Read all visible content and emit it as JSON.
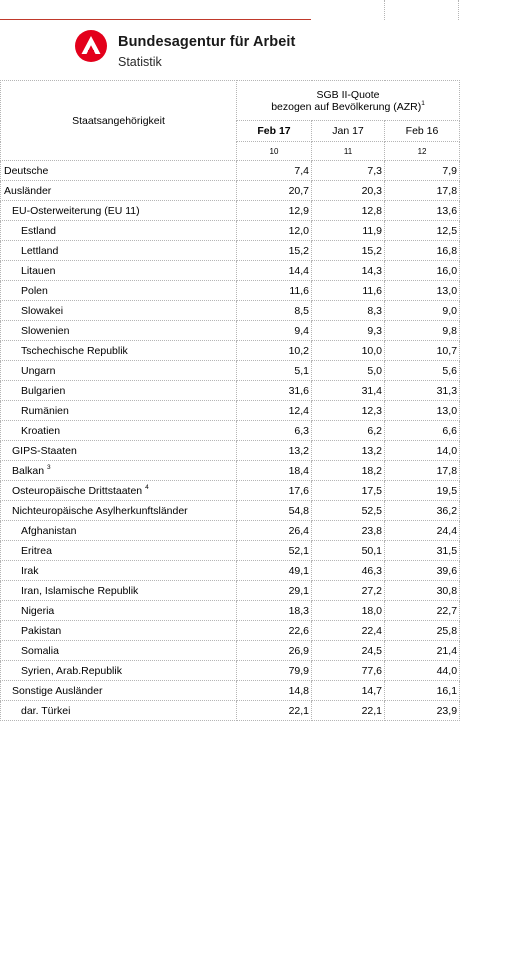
{
  "header": {
    "org_name": "Bundesagentur für Arbeit",
    "org_sub": "Statistik",
    "logo_icon": "ba-logo-icon",
    "accent_color": "#e3001b"
  },
  "table": {
    "row_header": "Staatsangehörigkeit",
    "group_title_line1": "SGB II-Quote",
    "group_title_line2": "bezogen auf Bevölkerung (AZR)",
    "group_title_sup": "1",
    "columns": [
      "Feb 17",
      "Jan 17",
      "Feb 16"
    ],
    "column_numbers": [
      "10",
      "11",
      "12"
    ],
    "rows": [
      {
        "label": "Deutsche",
        "sup": "",
        "level": 0,
        "values": [
          "7,4",
          "7,3",
          "7,9"
        ]
      },
      {
        "label": "Ausländer",
        "sup": "",
        "level": 0,
        "values": [
          "20,7",
          "20,3",
          "17,8"
        ]
      },
      {
        "label": "EU-Osterweiterung (EU 11)",
        "sup": "",
        "level": 1,
        "values": [
          "12,9",
          "12,8",
          "13,6"
        ]
      },
      {
        "label": "Estland",
        "sup": "",
        "level": 2,
        "values": [
          "12,0",
          "11,9",
          "12,5"
        ]
      },
      {
        "label": "Lettland",
        "sup": "",
        "level": 2,
        "values": [
          "15,2",
          "15,2",
          "16,8"
        ]
      },
      {
        "label": "Litauen",
        "sup": "",
        "level": 2,
        "values": [
          "14,4",
          "14,3",
          "16,0"
        ]
      },
      {
        "label": "Polen",
        "sup": "",
        "level": 2,
        "values": [
          "11,6",
          "11,6",
          "13,0"
        ]
      },
      {
        "label": "Slowakei",
        "sup": "",
        "level": 2,
        "values": [
          "8,5",
          "8,3",
          "9,0"
        ]
      },
      {
        "label": "Slowenien",
        "sup": "",
        "level": 2,
        "values": [
          "9,4",
          "9,3",
          "9,8"
        ]
      },
      {
        "label": "Tschechische Republik",
        "sup": "",
        "level": 2,
        "values": [
          "10,2",
          "10,0",
          "10,7"
        ]
      },
      {
        "label": "Ungarn",
        "sup": "",
        "level": 2,
        "values": [
          "5,1",
          "5,0",
          "5,6"
        ]
      },
      {
        "label": "Bulgarien",
        "sup": "",
        "level": 2,
        "values": [
          "31,6",
          "31,4",
          "31,3"
        ]
      },
      {
        "label": "Rumänien",
        "sup": "",
        "level": 2,
        "values": [
          "12,4",
          "12,3",
          "13,0"
        ]
      },
      {
        "label": "Kroatien",
        "sup": "",
        "level": 2,
        "values": [
          "6,3",
          "6,2",
          "6,6"
        ]
      },
      {
        "label": "GIPS-Staaten",
        "sup": "",
        "level": 1,
        "values": [
          "13,2",
          "13,2",
          "14,0"
        ]
      },
      {
        "label": "Balkan",
        "sup": "3",
        "level": 1,
        "values": [
          "18,4",
          "18,2",
          "17,8"
        ]
      },
      {
        "label": "Osteuropäische Drittstaaten",
        "sup": "4",
        "level": 1,
        "values": [
          "17,6",
          "17,5",
          "19,5"
        ]
      },
      {
        "label": "Nichteuropäische Asylherkunftsländer",
        "sup": "",
        "level": 1,
        "values": [
          "54,8",
          "52,5",
          "36,2"
        ]
      },
      {
        "label": "Afghanistan",
        "sup": "",
        "level": 2,
        "values": [
          "26,4",
          "23,8",
          "24,4"
        ]
      },
      {
        "label": "Eritrea",
        "sup": "",
        "level": 2,
        "values": [
          "52,1",
          "50,1",
          "31,5"
        ]
      },
      {
        "label": "Irak",
        "sup": "",
        "level": 2,
        "values": [
          "49,1",
          "46,3",
          "39,6"
        ]
      },
      {
        "label": "Iran, Islamische Republik",
        "sup": "",
        "level": 2,
        "values": [
          "29,1",
          "27,2",
          "30,8"
        ]
      },
      {
        "label": "Nigeria",
        "sup": "",
        "level": 2,
        "values": [
          "18,3",
          "18,0",
          "22,7"
        ]
      },
      {
        "label": "Pakistan",
        "sup": "",
        "level": 2,
        "values": [
          "22,6",
          "22,4",
          "25,8"
        ]
      },
      {
        "label": "Somalia",
        "sup": "",
        "level": 2,
        "values": [
          "26,9",
          "24,5",
          "21,4"
        ]
      },
      {
        "label": "Syrien, Arab.Republik",
        "sup": "",
        "level": 2,
        "values": [
          "79,9",
          "77,6",
          "44,0"
        ]
      },
      {
        "label": "Sonstige Ausländer",
        "sup": "",
        "level": 1,
        "values": [
          "14,8",
          "14,7",
          "16,1"
        ]
      },
      {
        "label": "dar. Türkei",
        "sup": "",
        "level": 2,
        "values": [
          "22,1",
          "22,1",
          "23,9"
        ]
      }
    ]
  }
}
